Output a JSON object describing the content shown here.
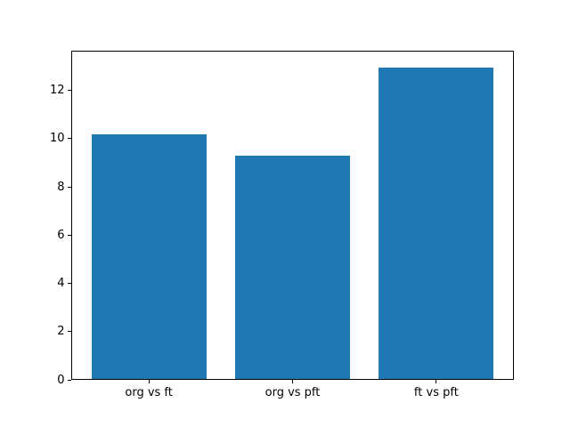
{
  "chart_data": {
    "type": "bar",
    "title": "",
    "xlabel": "",
    "ylabel": "",
    "categories": [
      "org vs ft",
      "org vs pft",
      "ft vs pft"
    ],
    "values": [
      10.2,
      9.3,
      13.0
    ],
    "yticks": [
      0,
      2,
      4,
      6,
      8,
      10,
      12
    ],
    "ylim": [
      0,
      13.65
    ],
    "xlim": [
      -0.54,
      2.54
    ],
    "bar_width": 0.8,
    "bar_color": "#1f77b4",
    "axis_color": "#000000",
    "background_color": "#ffffff",
    "grid": false,
    "legend": null
  }
}
